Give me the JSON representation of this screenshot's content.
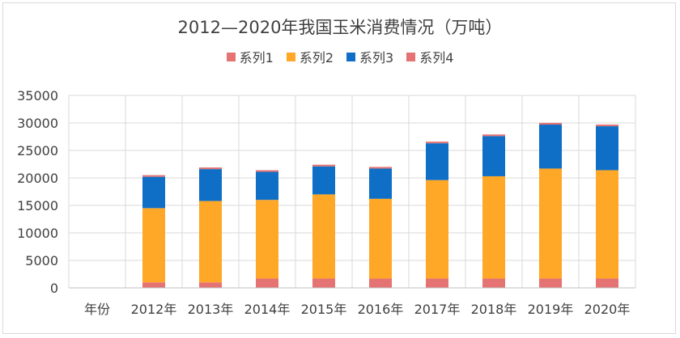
{
  "chart_data": {
    "type": "bar",
    "stacked": true,
    "title": "2012—2020年我国玉米消费情况（万吨）",
    "categories": [
      "年份",
      "2012年",
      "2013年",
      "2014年",
      "2015年",
      "2016年",
      "2017年",
      "2018年",
      "2019年",
      "2020年"
    ],
    "series": [
      {
        "name": "系列1",
        "color": "#e57373",
        "values": [
          0,
          0,
          0,
          0,
          0,
          0,
          0,
          0,
          0,
          0
        ]
      },
      {
        "name": "系列2",
        "color": "#ffa726",
        "values": [
          0,
          13500,
          14800,
          14300,
          15300,
          14500,
          17900,
          18600,
          20000,
          19700
        ]
      },
      {
        "name": "系列3",
        "color": "#0f6fc6",
        "values": [
          0,
          5700,
          5800,
          5100,
          5100,
          5500,
          6700,
          7300,
          8000,
          8000
        ]
      },
      {
        "name": "系列4",
        "color": "#e57373",
        "values": [
          0,
          1000,
          1000,
          1700,
          1700,
          1700,
          1700,
          1700,
          1700,
          1700
        ]
      }
    ],
    "stack_order": [
      "系列4",
      "系列2",
      "系列3",
      "系列1"
    ],
    "top_cap_color": "#e57373",
    "top_cap_value": 300,
    "y_ticks": [
      "0",
      "5000",
      "10000",
      "15000",
      "20000",
      "25000",
      "30000",
      "35000"
    ],
    "ylim": [
      0,
      35000
    ],
    "grid": true,
    "legend_position": "top"
  }
}
